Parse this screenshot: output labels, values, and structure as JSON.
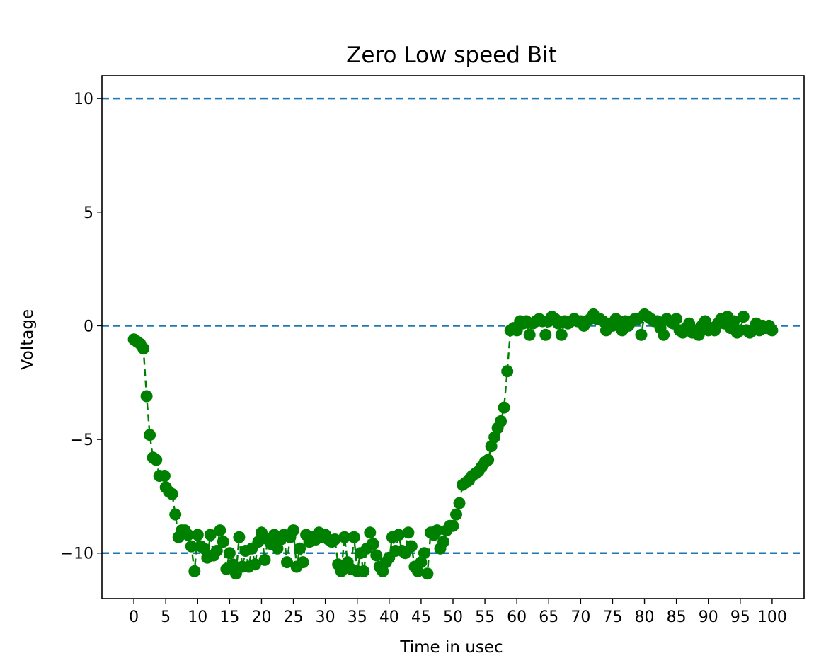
{
  "chart_data": {
    "type": "line",
    "title": "Zero Low speed Bit",
    "xlabel": "Time in usec",
    "ylabel": "Voltage",
    "xlim": [
      -5,
      105
    ],
    "ylim": [
      -12,
      11
    ],
    "x_ticks": [
      0,
      5,
      10,
      15,
      20,
      25,
      30,
      35,
      40,
      45,
      50,
      55,
      60,
      65,
      70,
      75,
      80,
      85,
      90,
      95,
      100
    ],
    "y_ticks": [
      10,
      5,
      0,
      -5,
      -10
    ],
    "y_tick_labels": [
      "10",
      "5",
      "0",
      "−5",
      "−10"
    ],
    "reference_lines": [
      {
        "y": 10,
        "style": "dashed",
        "color": "#1f77b4"
      },
      {
        "y": 0,
        "style": "dashed",
        "color": "#1f77b4"
      },
      {
        "y": -10,
        "style": "dashed",
        "color": "#1f77b4"
      }
    ],
    "series": [
      {
        "color": "#008000",
        "marker": "circle",
        "line_style": "dashed",
        "points": [
          [
            0,
            -0.6
          ],
          [
            0.5,
            -0.7
          ],
          [
            1,
            -0.8
          ],
          [
            1.5,
            -1.0
          ],
          [
            2,
            -3.1
          ],
          [
            2.5,
            -4.8
          ],
          [
            3,
            -5.8
          ],
          [
            3.5,
            -5.9
          ],
          [
            4,
            -6.6
          ],
          [
            4.8,
            -6.6
          ],
          [
            5,
            -7.1
          ],
          [
            5.5,
            -7.3
          ],
          [
            6,
            -7.4
          ],
          [
            6.5,
            -8.3
          ],
          [
            7,
            -9.3
          ],
          [
            7.5,
            -9.0
          ],
          [
            8,
            -9.0
          ],
          [
            8.5,
            -9.2
          ],
          [
            9,
            -9.7
          ],
          [
            9.5,
            -10.8
          ],
          [
            10,
            -9.2
          ],
          [
            10.5,
            -9.7
          ],
          [
            11,
            -9.8
          ],
          [
            11.5,
            -10.2
          ],
          [
            12,
            -9.2
          ],
          [
            12.5,
            -10.1
          ],
          [
            13,
            -9.9
          ],
          [
            13.5,
            -9.0
          ],
          [
            14,
            -9.5
          ],
          [
            14.5,
            -10.7
          ],
          [
            15,
            -10.0
          ],
          [
            15.5,
            -10.5
          ],
          [
            16,
            -10.9
          ],
          [
            16.5,
            -9.3
          ],
          [
            17,
            -10.6
          ],
          [
            17.5,
            -9.9
          ],
          [
            18,
            -10.6
          ],
          [
            18.5,
            -9.8
          ],
          [
            19,
            -10.5
          ],
          [
            19.5,
            -9.5
          ],
          [
            20,
            -9.1
          ],
          [
            20.5,
            -10.3
          ],
          [
            21,
            -9.4
          ],
          [
            21.5,
            -9.6
          ],
          [
            22,
            -9.2
          ],
          [
            22.5,
            -9.8
          ],
          [
            23,
            -9.4
          ],
          [
            23.5,
            -9.2
          ],
          [
            24,
            -10.4
          ],
          [
            24.5,
            -9.3
          ],
          [
            25,
            -9.0
          ],
          [
            25.5,
            -10.6
          ],
          [
            26,
            -9.8
          ],
          [
            26.5,
            -10.4
          ],
          [
            27,
            -9.2
          ],
          [
            27.5,
            -9.5
          ],
          [
            28,
            -9.3
          ],
          [
            28.5,
            -9.4
          ],
          [
            29,
            -9.1
          ],
          [
            29.5,
            -9.3
          ],
          [
            30,
            -9.2
          ],
          [
            30.5,
            -9.4
          ],
          [
            31,
            -9.5
          ],
          [
            31.5,
            -9.4
          ],
          [
            32,
            -10.5
          ],
          [
            32.5,
            -10.8
          ],
          [
            33,
            -9.3
          ],
          [
            33.5,
            -10.4
          ],
          [
            34,
            -10.7
          ],
          [
            34.5,
            -9.3
          ],
          [
            35,
            -10.8
          ],
          [
            35.5,
            -10.0
          ],
          [
            36,
            -10.8
          ],
          [
            36.5,
            -9.8
          ],
          [
            37,
            -9.1
          ],
          [
            37.5,
            -9.6
          ],
          [
            38,
            -10.1
          ],
          [
            38.5,
            -10.6
          ],
          [
            39,
            -10.8
          ],
          [
            39.5,
            -10.4
          ],
          [
            40,
            -10.2
          ],
          [
            40.5,
            -9.3
          ],
          [
            41,
            -9.9
          ],
          [
            41.5,
            -9.2
          ],
          [
            42,
            -9.9
          ],
          [
            42.5,
            -10.0
          ],
          [
            43,
            -9.1
          ],
          [
            43.5,
            -9.7
          ],
          [
            44,
            -10.6
          ],
          [
            44.5,
            -10.8
          ],
          [
            45,
            -10.4
          ],
          [
            45.5,
            -10.0
          ],
          [
            46,
            -10.9
          ],
          [
            46.5,
            -9.1
          ],
          [
            47,
            -9.2
          ],
          [
            47.5,
            -9.0
          ],
          [
            48,
            -9.8
          ],
          [
            48.5,
            -9.5
          ],
          [
            49,
            -9.0
          ],
          [
            49.5,
            -8.8
          ],
          [
            50,
            -8.8
          ],
          [
            50.5,
            -8.3
          ],
          [
            51,
            -7.8
          ],
          [
            51.5,
            -7.0
          ],
          [
            52,
            -6.9
          ],
          [
            52.5,
            -6.8
          ],
          [
            53,
            -6.6
          ],
          [
            53.5,
            -6.5
          ],
          [
            54,
            -6.4
          ],
          [
            54.5,
            -6.2
          ],
          [
            55,
            -6.0
          ],
          [
            55.5,
            -5.9
          ],
          [
            56,
            -5.3
          ],
          [
            56.5,
            -4.9
          ],
          [
            57,
            -4.5
          ],
          [
            57.5,
            -4.2
          ],
          [
            58,
            -3.6
          ],
          [
            58.5,
            -2.0
          ],
          [
            59,
            -0.2
          ],
          [
            59.5,
            -0.1
          ],
          [
            60,
            -0.2
          ],
          [
            60.5,
            0.2
          ],
          [
            61,
            0.1
          ],
          [
            61.5,
            0.2
          ],
          [
            62,
            -0.4
          ],
          [
            62.5,
            0.1
          ],
          [
            63,
            0.2
          ],
          [
            63.5,
            0.3
          ],
          [
            64,
            0.2
          ],
          [
            64.5,
            -0.4
          ],
          [
            65,
            0.2
          ],
          [
            65.5,
            0.4
          ],
          [
            66,
            0.3
          ],
          [
            66.5,
            0.1
          ],
          [
            67,
            -0.4
          ],
          [
            67.5,
            0.2
          ],
          [
            68,
            0.1
          ],
          [
            68.5,
            0.2
          ],
          [
            69,
            0.3
          ],
          [
            69.5,
            0.2
          ],
          [
            70,
            0.2
          ],
          [
            70.5,
            0.0
          ],
          [
            71,
            0.2
          ],
          [
            71.5,
            0.3
          ],
          [
            72,
            0.5
          ],
          [
            72.5,
            0.3
          ],
          [
            73,
            0.3
          ],
          [
            73.5,
            0.2
          ],
          [
            74,
            -0.2
          ],
          [
            74.5,
            0.1
          ],
          [
            75,
            0.0
          ],
          [
            75.5,
            0.3
          ],
          [
            76,
            0.2
          ],
          [
            76.5,
            -0.2
          ],
          [
            77,
            0.2
          ],
          [
            77.5,
            0.0
          ],
          [
            78,
            0.2
          ],
          [
            78.5,
            0.3
          ],
          [
            79,
            0.3
          ],
          [
            79.5,
            -0.4
          ],
          [
            80,
            0.5
          ],
          [
            80.5,
            0.4
          ],
          [
            81,
            0.3
          ],
          [
            81.5,
            0.2
          ],
          [
            82,
            0.2
          ],
          [
            82.5,
            -0.1
          ],
          [
            83,
            -0.4
          ],
          [
            83.5,
            0.3
          ],
          [
            84,
            0.2
          ],
          [
            84.5,
            0.1
          ],
          [
            85,
            0.3
          ],
          [
            85.5,
            -0.2
          ],
          [
            86,
            -0.3
          ],
          [
            86.5,
            -0.1
          ],
          [
            87,
            0.1
          ],
          [
            87.5,
            -0.3
          ],
          [
            88,
            -0.2
          ],
          [
            88.5,
            -0.4
          ],
          [
            89,
            0.0
          ],
          [
            89.5,
            0.2
          ],
          [
            90,
            -0.2
          ],
          [
            90.5,
            -0.1
          ],
          [
            91,
            -0.2
          ],
          [
            91.5,
            0.1
          ],
          [
            92,
            0.3
          ],
          [
            92.5,
            0.1
          ],
          [
            93,
            0.4
          ],
          [
            93.5,
            -0.1
          ],
          [
            94,
            0.2
          ],
          [
            94.5,
            -0.3
          ],
          [
            95,
            -0.2
          ],
          [
            95.5,
            0.4
          ],
          [
            96,
            -0.2
          ],
          [
            96.5,
            -0.3
          ],
          [
            97,
            -0.2
          ],
          [
            97.5,
            0.1
          ],
          [
            98,
            -0.2
          ],
          [
            98.5,
            0.0
          ],
          [
            99,
            -0.1
          ],
          [
            99.5,
            0.0
          ],
          [
            100,
            -0.2
          ]
        ]
      }
    ],
    "grid": false,
    "legend": "none"
  }
}
